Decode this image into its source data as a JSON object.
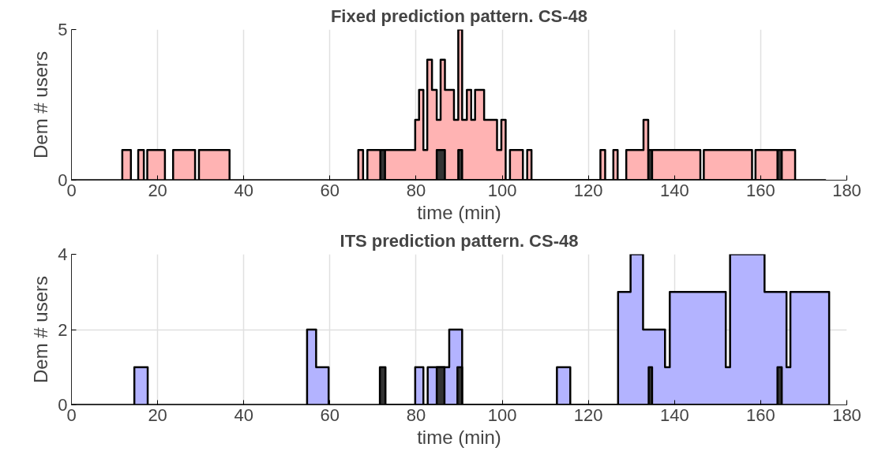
{
  "chart_data": [
    {
      "type": "area",
      "title": "Fixed prediction pattern. CS-48",
      "xlabel": "time (min)",
      "ylabel": "Dem # users",
      "xlim": [
        0,
        180
      ],
      "xticks": [
        0,
        20,
        40,
        60,
        80,
        100,
        120,
        140,
        160,
        180
      ],
      "ylim": [
        0,
        5
      ],
      "yticks": [
        0,
        5
      ],
      "grid": true,
      "series": [
        {
          "color": "#ffb3b3",
          "x": [
            0,
            11.8,
            11.8,
            13.8,
            13.8,
            15.5,
            15.5,
            16.8,
            16.8,
            17.6,
            17.6,
            21.7,
            21.7,
            23.6,
            23.6,
            28.7,
            28.7,
            29.6,
            29.6,
            36.7,
            36.7,
            66.6,
            66.6,
            67.7,
            67.7,
            68.7,
            68.7,
            79.8,
            79.8,
            80.7,
            80.7,
            81.7,
            81.7,
            82.6,
            82.6,
            83.7,
            83.7,
            84.8,
            84.8,
            85.7,
            85.7,
            86.7,
            86.7,
            88.8,
            88.8,
            89.8,
            89.8,
            90.7,
            90.7,
            91.8,
            91.8,
            92.8,
            92.8,
            93.7,
            93.7,
            95.8,
            95.8,
            98.8,
            98.8,
            99.8,
            99.8,
            100.8,
            100.8,
            101.8,
            101.8,
            104.8,
            104.8,
            105.8,
            105.8,
            106.8,
            106.8,
            122.8,
            122.8,
            123.9,
            123.9,
            125.8,
            125.8,
            126.8,
            126.8,
            128.8,
            128.8,
            132.8,
            132.8,
            133.9,
            133.9,
            146,
            146,
            146.8,
            146.8,
            158,
            158,
            158.8,
            158.8,
            168,
            168,
            175
          ],
          "values": [
            0,
            0,
            1,
            1,
            0,
            0,
            1,
            1,
            0,
            0,
            1,
            1,
            0,
            0,
            1,
            1,
            0,
            0,
            1,
            1,
            0,
            0,
            1,
            1,
            0,
            0,
            1,
            1,
            2,
            2,
            3,
            3,
            1,
            1,
            4,
            4,
            3,
            3,
            2,
            2,
            4,
            4,
            3,
            3,
            2,
            2,
            5,
            5,
            2,
            2,
            3,
            3,
            2,
            2,
            3,
            3,
            2,
            2,
            1,
            1,
            2,
            2,
            0,
            0,
            1,
            1,
            0,
            0,
            1,
            1,
            0,
            0,
            1,
            1,
            0,
            0,
            1,
            1,
            0,
            0,
            1,
            1,
            2,
            2,
            1,
            1,
            0,
            0,
            1,
            1,
            0,
            0,
            1,
            1,
            0,
            0
          ]
        },
        {
          "color": "#333333",
          "x": [
            71.7,
            71.7,
            72.8,
            72.8,
            84.8,
            84.8,
            86.7,
            86.7,
            89.8,
            89.8,
            90.7,
            90.7,
            133.9,
            133.9,
            134.8,
            134.8,
            163.9,
            163.9,
            164.9,
            164.9
          ],
          "values": [
            0,
            1,
            1,
            0,
            0,
            1,
            1,
            0,
            0,
            1,
            1,
            0,
            0,
            1,
            1,
            0,
            0,
            1,
            1,
            0
          ]
        }
      ]
    },
    {
      "type": "area",
      "title": "ITS prediction pattern. CS-48",
      "xlabel": "time (min)",
      "ylabel": "Dem # users",
      "xlim": [
        0,
        180
      ],
      "xticks": [
        0,
        20,
        40,
        60,
        80,
        100,
        120,
        140,
        160,
        180
      ],
      "ylim": [
        0,
        4
      ],
      "yticks": [
        0,
        2,
        4
      ],
      "grid": true,
      "series": [
        {
          "color": "#b3b3ff",
          "x": [
            0,
            14.6,
            14.6,
            17.7,
            17.7,
            54.7,
            54.7,
            56.8,
            56.8,
            59.7,
            59.7,
            79.8,
            79.8,
            81.7,
            81.7,
            82.7,
            82.7,
            87.7,
            87.7,
            90.7,
            90.7,
            112.7,
            112.7,
            115.8,
            115.8,
            126.9,
            126.9,
            129.8,
            129.8,
            132.7,
            132.7,
            137.8,
            137.8,
            138.9,
            138.9,
            151.9,
            151.9,
            152.9,
            152.9,
            160.9,
            160.9,
            166,
            166,
            166.9,
            166.9,
            175.9,
            175.9
          ],
          "values": [
            0,
            0,
            1,
            1,
            0,
            0,
            2,
            2,
            1,
            1,
            0,
            0,
            1,
            1,
            0,
            0,
            1,
            1,
            2,
            2,
            0,
            0,
            1,
            1,
            0,
            0,
            3,
            3,
            4,
            4,
            2,
            2,
            1,
            1,
            3,
            3,
            1,
            1,
            4,
            4,
            3,
            3,
            1,
            1,
            3,
            3,
            0
          ]
        },
        {
          "color": "#333333",
          "x": [
            71.6,
            71.6,
            72.9,
            72.9,
            84.8,
            84.8,
            86.6,
            86.6,
            89.6,
            89.6,
            90.7,
            90.7,
            134,
            134,
            134.8,
            134.8,
            163.9,
            163.9,
            164.9,
            164.9
          ],
          "values": [
            0,
            1,
            1,
            0,
            0,
            1,
            1,
            0,
            0,
            1,
            1,
            0,
            0,
            1,
            1,
            0,
            0,
            1,
            1,
            0
          ]
        }
      ]
    }
  ]
}
